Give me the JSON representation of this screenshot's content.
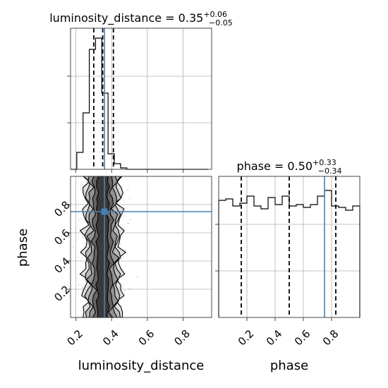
{
  "chart_data": {
    "type": "corner",
    "parameters": [
      {
        "name": "luminosity_distance",
        "title": "luminosity_distance = 0.35",
        "title_sup": "+0.06",
        "title_sub": "−0.05",
        "median": 0.35,
        "q_low": 0.3,
        "q_high": 0.41,
        "truth": 0.36,
        "range": [
          0.17,
          0.96
        ],
        "ticks": [
          0.2,
          0.4,
          0.6,
          0.8
        ],
        "tick_labels": [
          "0.2",
          "0.4",
          "0.6",
          "0.8"
        ],
        "hist_bins": [
          0.17,
          0.205,
          0.24,
          0.275,
          0.31,
          0.345,
          0.38,
          0.415,
          0.45,
          0.485,
          0.52,
          0.555,
          0.59,
          0.625,
          0.66,
          0.695,
          0.73,
          0.765,
          0.8,
          0.835,
          0.87,
          0.905,
          0.94
        ],
        "hist_counts": [
          0.0,
          0.12,
          0.4,
          0.85,
          0.93,
          0.54,
          0.11,
          0.04,
          0.01,
          0.0,
          0.0,
          0.0,
          0.0,
          0.0,
          0.0,
          0.0,
          0.0,
          0.0,
          0.0,
          0.0,
          0.0,
          0.0
        ]
      },
      {
        "name": "phase",
        "title": "phase = 0.50",
        "title_sup": "+0.33",
        "title_sub": "−0.34",
        "median": 0.5,
        "q_low": 0.16,
        "q_high": 0.83,
        "truth": 0.75,
        "range": [
          0.0,
          1.0
        ],
        "ticks": [
          0.2,
          0.4,
          0.6,
          0.8
        ],
        "tick_labels": [
          "0.2",
          "0.4",
          "0.6",
          "0.8"
        ],
        "hist_bins": [
          0.0,
          0.05,
          0.1,
          0.15,
          0.2,
          0.25,
          0.3,
          0.35,
          0.4,
          0.45,
          0.5,
          0.55,
          0.6,
          0.65,
          0.7,
          0.75,
          0.8,
          0.85,
          0.9,
          0.95,
          1.0
        ],
        "hist_counts": [
          0.83,
          0.84,
          0.79,
          0.81,
          0.86,
          0.79,
          0.77,
          0.85,
          0.8,
          0.86,
          0.79,
          0.8,
          0.78,
          0.8,
          0.86,
          0.9,
          0.79,
          0.78,
          0.76,
          0.79
        ]
      }
    ],
    "xlabels": [
      "luminosity_distance",
      "phase"
    ],
    "ylabel": "phase",
    "grid": true,
    "contour_center_x": 0.35,
    "contour_half_widths": [
      0.1,
      0.085,
      0.07,
      0.05,
      0.03
    ]
  }
}
